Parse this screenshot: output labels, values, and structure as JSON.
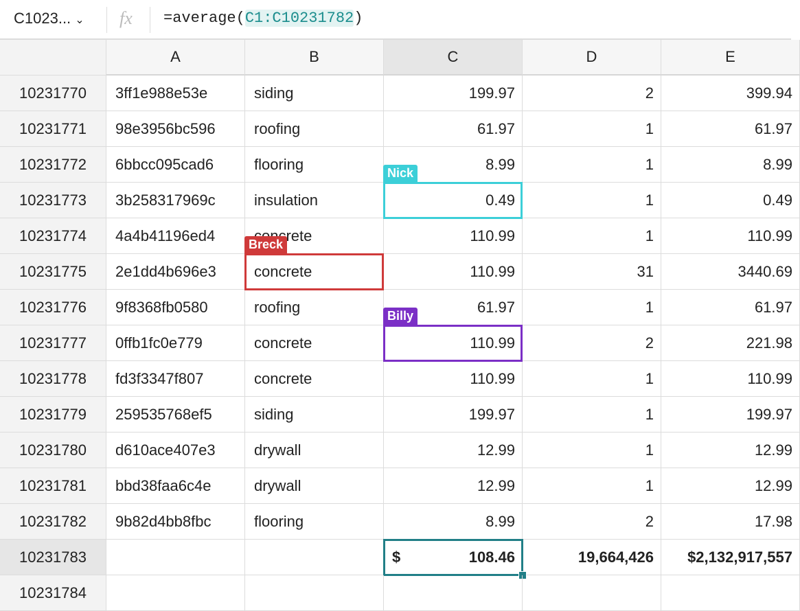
{
  "name_box": "C1023...",
  "fx": "fx",
  "formula": {
    "prefix": "=average(",
    "range": "C1:C10231782",
    "suffix": ")"
  },
  "columns": [
    "A",
    "B",
    "C",
    "D",
    "E"
  ],
  "selected_column": "C",
  "rows": [
    {
      "header": "10231770",
      "cells": [
        "3ff1e988e53e",
        "siding",
        "199.97",
        "2",
        "399.94"
      ]
    },
    {
      "header": "10231771",
      "cells": [
        "98e3956bc596",
        "roofing",
        "61.97",
        "1",
        "61.97"
      ]
    },
    {
      "header": "10231772",
      "cells": [
        "6bbcc095cad6",
        "flooring",
        "8.99",
        "1",
        "8.99"
      ]
    },
    {
      "header": "10231773",
      "cells": [
        "3b258317969c",
        "insulation",
        "0.49",
        "1",
        "0.49"
      ],
      "cursor": {
        "user": "Nick",
        "column": "C",
        "color": "#3ccfd8"
      }
    },
    {
      "header": "10231774",
      "cells": [
        "4a4b41196ed4",
        "concrete",
        "110.99",
        "1",
        "110.99"
      ]
    },
    {
      "header": "10231775",
      "cells": [
        "2e1dd4b696e3",
        "concrete",
        "110.99",
        "31",
        "3440.69"
      ],
      "cursor": {
        "user": "Breck",
        "column": "B",
        "color": "#cf3a3a"
      }
    },
    {
      "header": "10231776",
      "cells": [
        "9f8368fb0580",
        "roofing",
        "61.97",
        "1",
        "61.97"
      ]
    },
    {
      "header": "10231777",
      "cells": [
        "0ffb1fc0e779",
        "concrete",
        "110.99",
        "2",
        "221.98"
      ],
      "cursor": {
        "user": "Billy",
        "column": "C",
        "color": "#7b2fc6"
      }
    },
    {
      "header": "10231778",
      "cells": [
        "fd3f3347f807",
        "concrete",
        "110.99",
        "1",
        "110.99"
      ]
    },
    {
      "header": "10231779",
      "cells": [
        "259535768ef5",
        "siding",
        "199.97",
        "1",
        "199.97"
      ]
    },
    {
      "header": "10231780",
      "cells": [
        "d610ace407e3",
        "drywall",
        "12.99",
        "1",
        "12.99"
      ]
    },
    {
      "header": "10231781",
      "cells": [
        "bbd38faa6c4e",
        "drywall",
        "12.99",
        "1",
        "12.99"
      ]
    },
    {
      "header": "10231782",
      "cells": [
        "9b82d4bb8fbc",
        "flooring",
        "8.99",
        "2",
        "17.98"
      ]
    }
  ],
  "total_row": {
    "header": "10231783",
    "currency_symbol": "$",
    "average": "108.46",
    "quantity_total": "19,664,426",
    "amount_total": "$2,132,917,557"
  },
  "next_row_header": "10231784"
}
